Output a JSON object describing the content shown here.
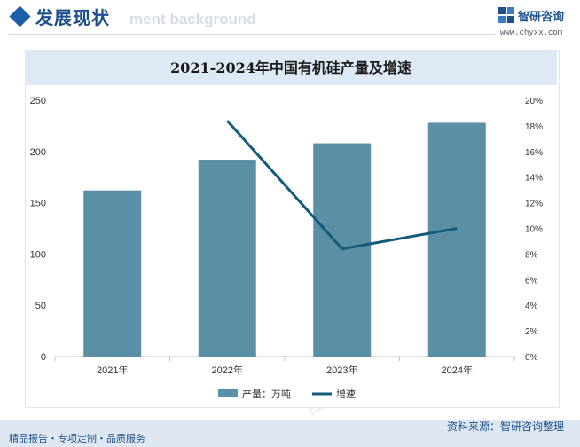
{
  "header": {
    "title": "发展现状",
    "bg_text": "ment background"
  },
  "logo": {
    "name": "智研咨询",
    "url": "www.chyxx.com"
  },
  "watermark": "智研咨询",
  "colors": {
    "bar": "#5b8fa6",
    "line": "#145a7a",
    "brand": "#1c4f8c"
  },
  "chart_data": {
    "type": "bar",
    "title": "2021-2024年中国有机硅产量及增速",
    "categories": [
      "2021年",
      "2022年",
      "2023年",
      "2024年"
    ],
    "series": [
      {
        "name": "产量：万吨",
        "type": "bar",
        "axis": "left",
        "values": [
          162,
          192,
          208,
          228
        ]
      },
      {
        "name": "增速",
        "type": "line",
        "axis": "right",
        "values": [
          null,
          18.4,
          8.4,
          10.0
        ]
      }
    ],
    "y_left": {
      "min": 0,
      "max": 250,
      "ticks": [
        "0",
        "50",
        "100",
        "150",
        "200",
        "250"
      ]
    },
    "y_right": {
      "min": 0,
      "max": 20,
      "ticks": [
        "0%",
        "2%",
        "4%",
        "6%",
        "8%",
        "10%",
        "12%",
        "14%",
        "16%",
        "18%",
        "20%"
      ]
    },
    "legend_position": "bottom"
  },
  "footer": {
    "left": "精品报告・专项定制・品质服务",
    "right": "资料来源：智研咨询整理"
  }
}
